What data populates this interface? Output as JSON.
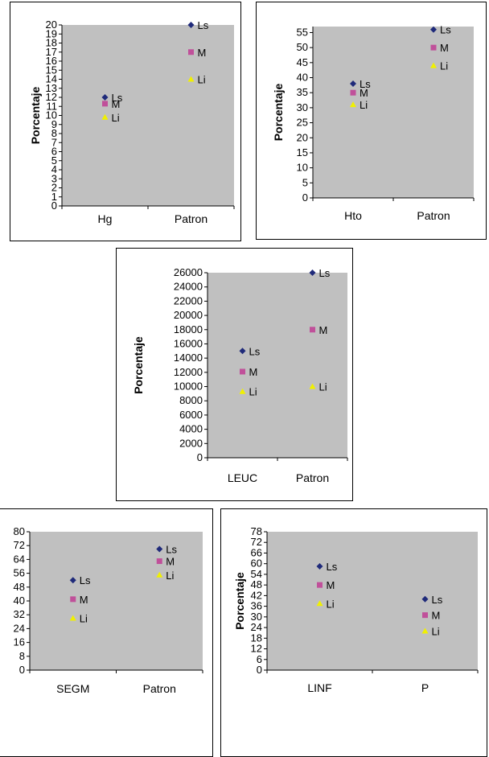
{
  "chart_data": [
    {
      "type": "scatter",
      "ylabel": "Porcentaje",
      "categories": [
        "Hg",
        "Patron"
      ],
      "yticks": [
        "0",
        "1",
        "2",
        "3",
        "4",
        "5",
        "6",
        "7",
        "8",
        "9",
        "10",
        "11",
        "12",
        "13",
        "14",
        "15",
        "16",
        "17",
        "18",
        "19",
        "20"
      ],
      "ylim": [
        0,
        20
      ],
      "series": [
        {
          "name": "Ls",
          "values": [
            12,
            20
          ]
        },
        {
          "name": "M",
          "values": [
            11.3,
            17
          ]
        },
        {
          "name": "Li",
          "values": [
            9.8,
            14
          ]
        }
      ]
    },
    {
      "type": "scatter",
      "ylabel": "Porcentaje",
      "categories": [
        "Hto",
        "Patron"
      ],
      "yticks": [
        "0",
        "5",
        "10",
        "15",
        "20",
        "25",
        "30",
        "35",
        "40",
        "45",
        "50",
        "55"
      ],
      "ylim": [
        0,
        57
      ],
      "series": [
        {
          "name": "Ls",
          "values": [
            38,
            56
          ]
        },
        {
          "name": "M",
          "values": [
            35,
            50
          ]
        },
        {
          "name": "Li",
          "values": [
            31,
            44
          ]
        }
      ]
    },
    {
      "type": "scatter",
      "ylabel": "Porcentaje",
      "categories": [
        "LEUC",
        "Patron"
      ],
      "yticks": [
        "0",
        "2000",
        "4000",
        "6000",
        "8000",
        "10000",
        "12000",
        "14000",
        "16000",
        "18000",
        "20000",
        "22000",
        "24000",
        "26000"
      ],
      "ylim": [
        0,
        26000
      ],
      "series": [
        {
          "name": "Ls",
          "values": [
            15000,
            26000
          ]
        },
        {
          "name": "M",
          "values": [
            12100,
            18000
          ]
        },
        {
          "name": "Li",
          "values": [
            9300,
            10000
          ]
        }
      ]
    },
    {
      "type": "scatter",
      "ylabel": "",
      "categories": [
        "SEGM",
        "Patron"
      ],
      "yticks": [
        "0",
        "8",
        "16",
        "24",
        "32",
        "40",
        "48",
        "56",
        "64",
        "72",
        "80"
      ],
      "ylim": [
        0,
        80
      ],
      "series": [
        {
          "name": "Ls",
          "values": [
            52,
            70
          ]
        },
        {
          "name": "M",
          "values": [
            41,
            63
          ]
        },
        {
          "name": "Li",
          "values": [
            30,
            55
          ]
        }
      ]
    },
    {
      "type": "scatter",
      "ylabel": "Porcentaje",
      "categories": [
        "LINF",
        "P"
      ],
      "yticks": [
        "0",
        "6",
        "12",
        "18",
        "24",
        "30",
        "36",
        "42",
        "48",
        "54",
        "60",
        "66",
        "72",
        "78"
      ],
      "ylim": [
        0,
        78
      ],
      "series": [
        {
          "name": "Ls",
          "values": [
            58.5,
            40
          ]
        },
        {
          "name": "M",
          "values": [
            48,
            31
          ]
        },
        {
          "name": "Li",
          "values": [
            37.5,
            22
          ]
        }
      ]
    }
  ],
  "colors": {
    "plot_bg": "#c0c0c0",
    "Ls": "#1f2a7a",
    "M": "#c0509a",
    "Li": "#f0f000"
  }
}
